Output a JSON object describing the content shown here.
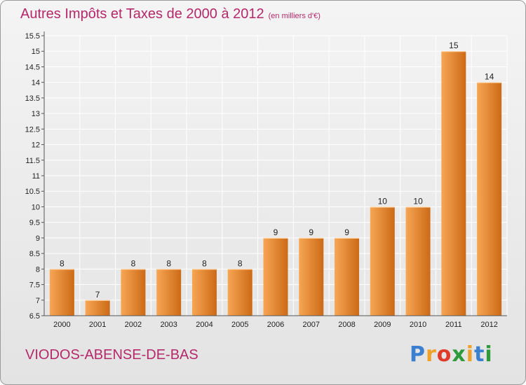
{
  "title": "Autres Impôts et Taxes de 2000 à 2012",
  "unit": "(en milliers d'€)",
  "location": "VIODOS-ABENSE-DE-BAS",
  "logo": {
    "letters": [
      "P",
      "r",
      "o",
      "x",
      "i",
      "t",
      "i"
    ],
    "colors": [
      "#3b7fd0",
      "#f0a12a",
      "#e03a2a",
      "#2e9a3a",
      "#f0a12a",
      "#3b7fd0",
      "#2e9a3a"
    ]
  },
  "colors": {
    "title": "#b5286a",
    "bar_top": "#f7a654",
    "bar_bottom": "#cc6a16",
    "grid": "#ffffff",
    "text": "#222222"
  },
  "chart_data": {
    "type": "bar",
    "categories": [
      "2000",
      "2001",
      "2002",
      "2003",
      "2004",
      "2005",
      "2006",
      "2007",
      "2008",
      "2009",
      "2010",
      "2011",
      "2012"
    ],
    "values": [
      8,
      7,
      8,
      8,
      8,
      8,
      9,
      9,
      9,
      10,
      10,
      15,
      14
    ],
    "labels": [
      "8",
      "7",
      "8",
      "8",
      "8",
      "8",
      "9",
      "9",
      "9",
      "10",
      "10",
      "15",
      "14"
    ],
    "ylim": [
      6.5,
      15.5
    ],
    "yticks": [
      "6.5",
      "7",
      "7.5",
      "8",
      "8.5",
      "9",
      "9.5",
      "10",
      "10.5",
      "11",
      "11.5",
      "12",
      "12.5",
      "13",
      "13.5",
      "14",
      "14.5",
      "15",
      "15.5"
    ],
    "grid": true
  }
}
